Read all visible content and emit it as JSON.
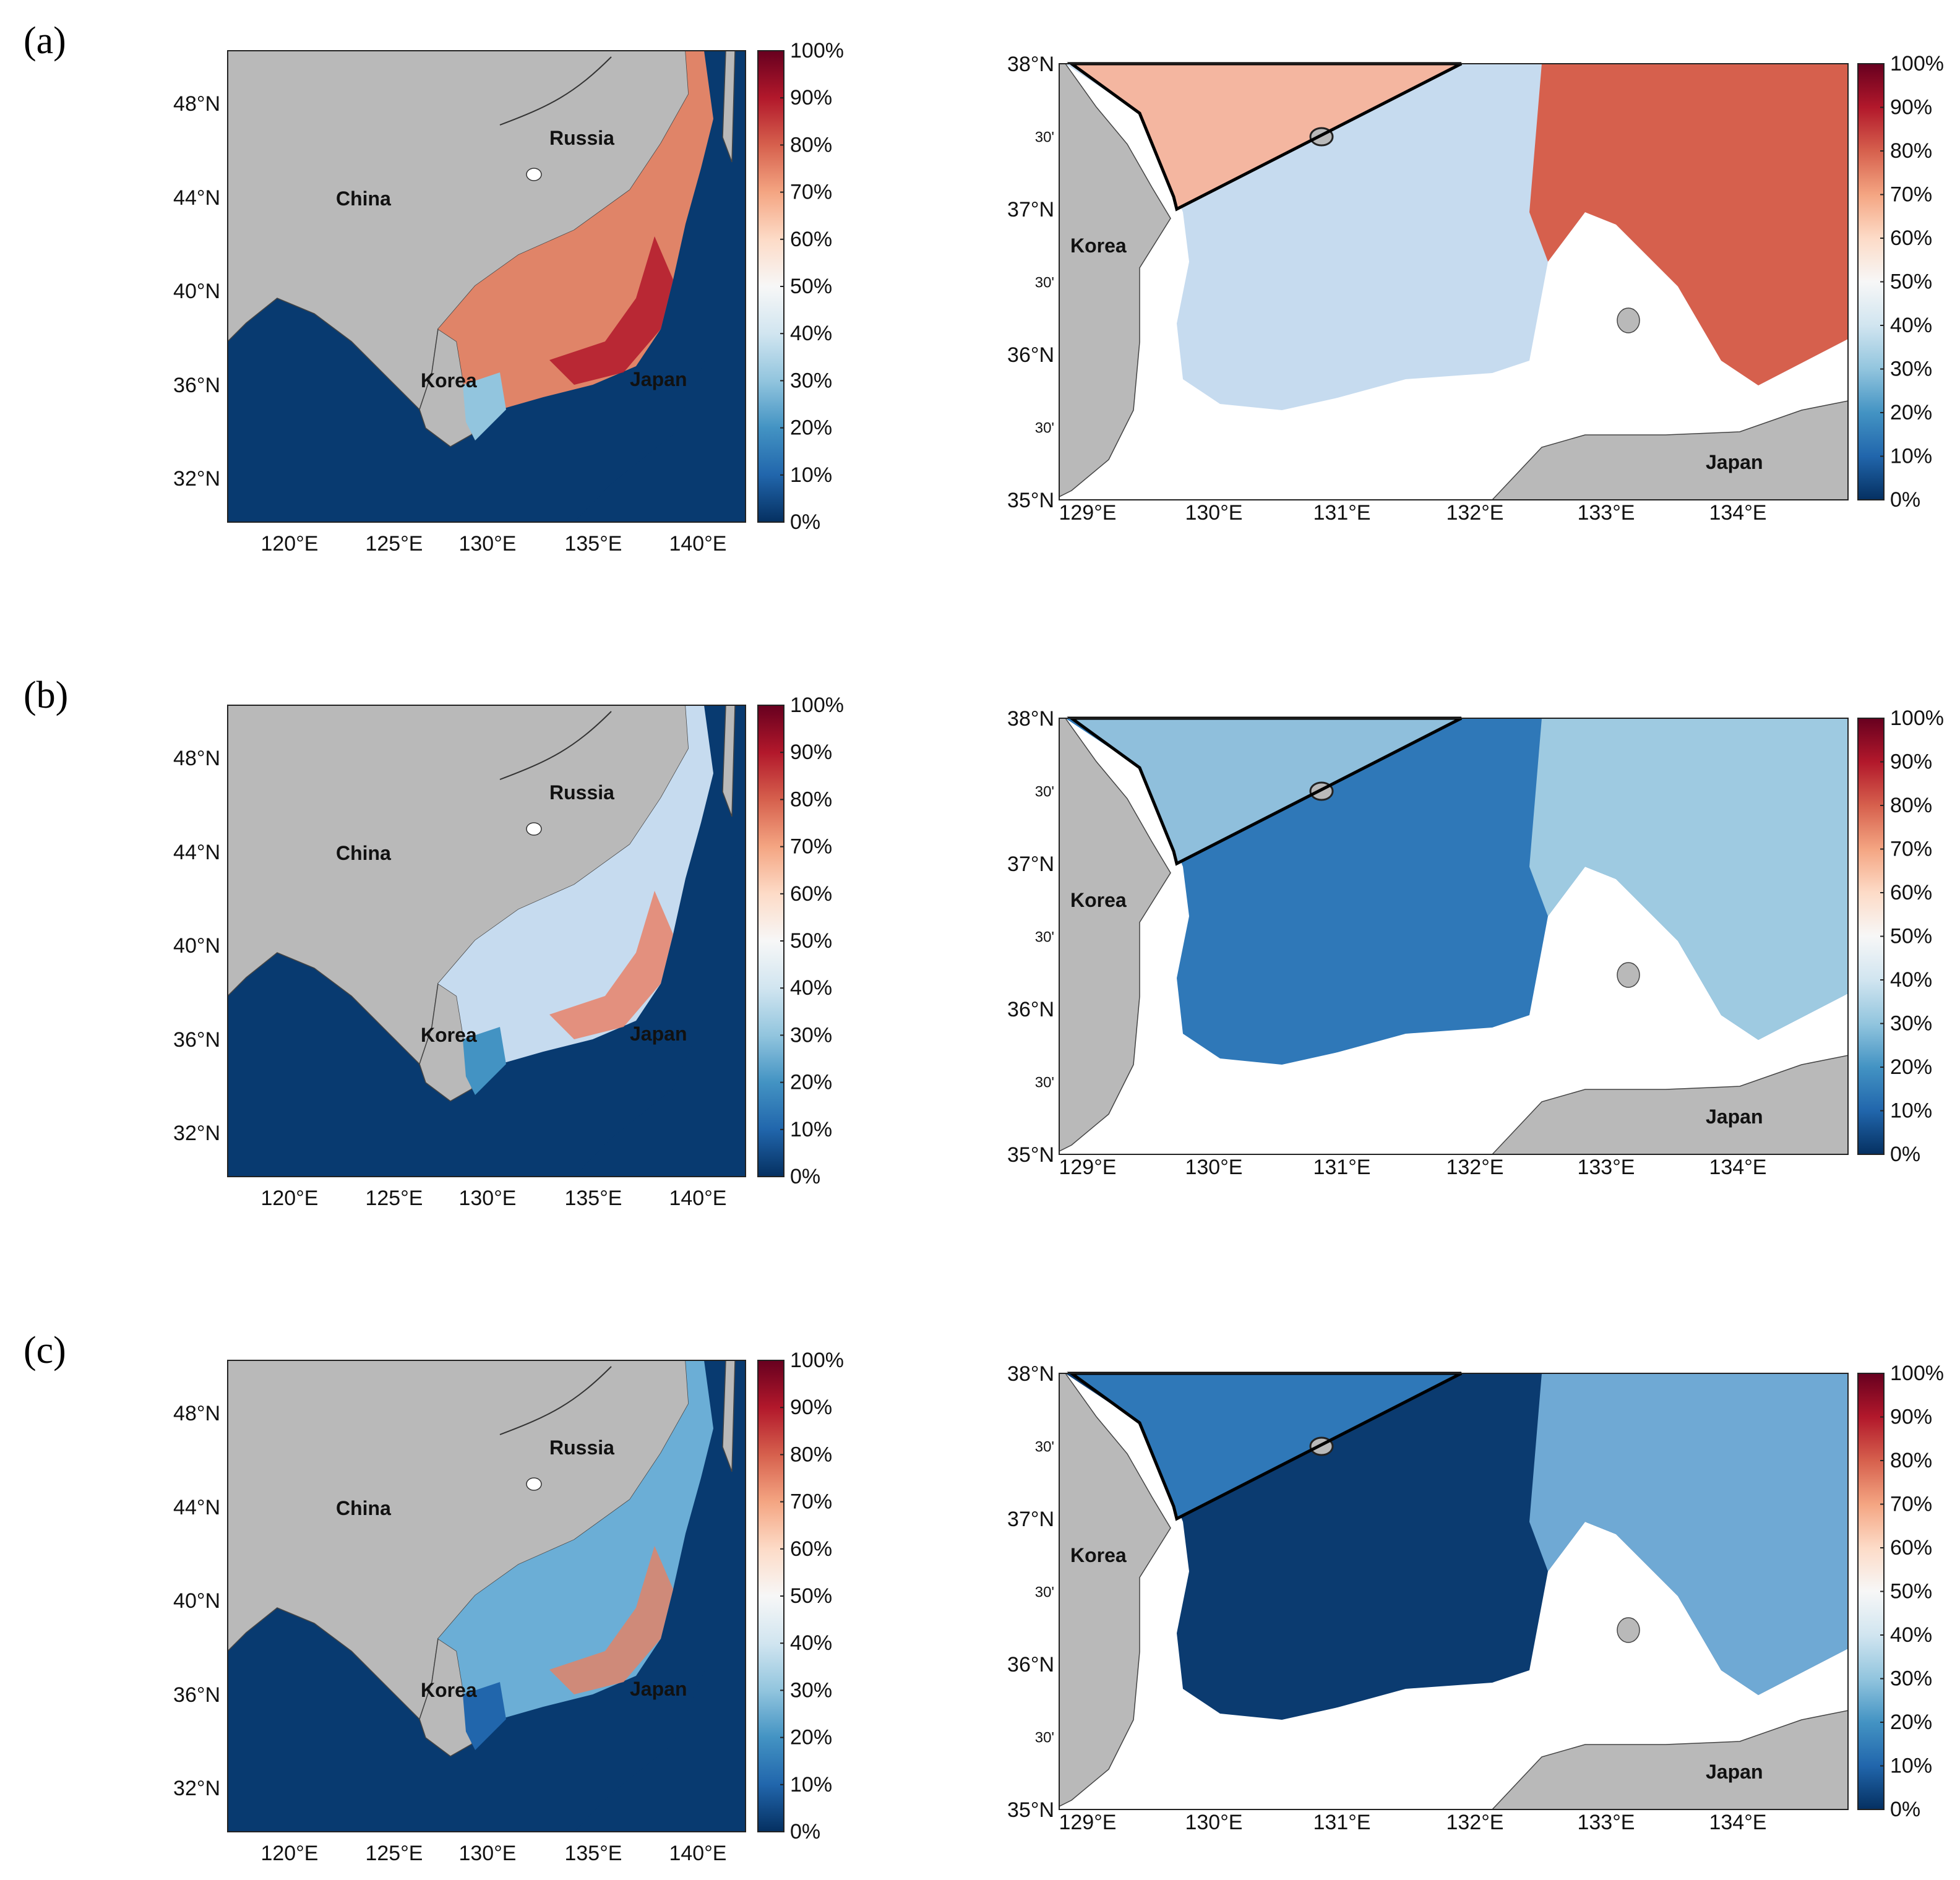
{
  "panel_labels": [
    "(a)",
    "(b)",
    "(c)"
  ],
  "colorbar": {
    "ticks": [
      "0%",
      "10%",
      "20%",
      "30%",
      "40%",
      "50%",
      "60%",
      "70%",
      "80%",
      "90%",
      "100%"
    ],
    "colors": [
      "#053061",
      "#2166ac",
      "#4393c3",
      "#92c5de",
      "#d1e5f0",
      "#f7f7f7",
      "#fddbc7",
      "#f4a582",
      "#d6604d",
      "#b2182b",
      "#67001f"
    ]
  },
  "overview_map": {
    "lat_ticks": [
      "48°N",
      "44°N",
      "40°N",
      "36°N",
      "32°N"
    ],
    "lon_ticks": [
      "120°E",
      "125°E",
      "130°E",
      "135°E",
      "140°E"
    ],
    "places": {
      "russia": "Russia",
      "china": "China",
      "korea": "Korea",
      "japan": "Japan"
    }
  },
  "zoom_map": {
    "lat_ticks": [
      "38°N",
      "30'",
      "37°N",
      "30'",
      "36°N",
      "30'",
      "35°N"
    ],
    "lon_ticks": [
      "129°E",
      "130°E",
      "131°E",
      "132°E",
      "133°E",
      "134°E"
    ],
    "places": {
      "korea": "Korea",
      "japan": "Japan"
    }
  },
  "panels": [
    {
      "label": "(a)",
      "overview_sea_color": "#e08468",
      "overview_accent_color": "#b2182b",
      "overview_south_color": "#92c5de",
      "zoom_bg_color": "#c6dbef",
      "zoom_north_color": "#f4b6a0",
      "zoom_east_color": "#d6604d"
    },
    {
      "label": "(b)",
      "overview_sea_color": "#c6dbef",
      "overview_accent_color": "#e7826a",
      "overview_south_color": "#4393c3",
      "zoom_bg_color": "#2f78b8",
      "zoom_north_color": "#8fbfdc",
      "zoom_east_color": "#9ecae1"
    },
    {
      "label": "(c)",
      "overview_sea_color": "#6baed6",
      "overview_accent_color": "#e08468",
      "overview_south_color": "#2166ac",
      "zoom_bg_color": "#0b3b70",
      "zoom_north_color": "#2f78b8",
      "zoom_east_color": "#6fa9d4"
    }
  ]
}
